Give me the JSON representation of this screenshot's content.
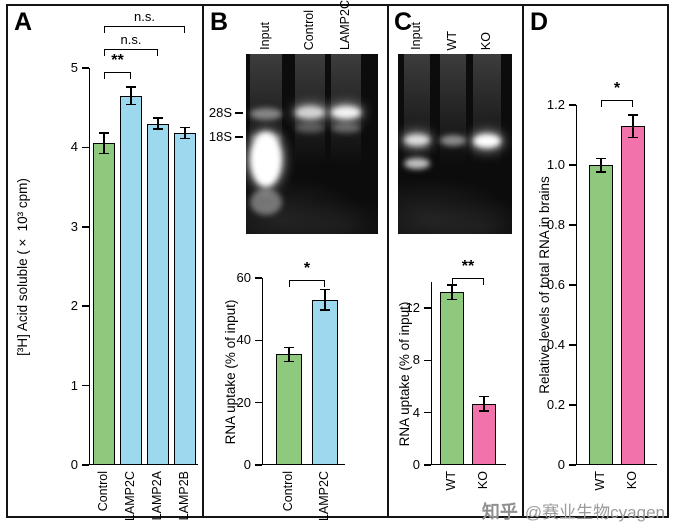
{
  "panel_labels": [
    "A",
    "B",
    "C",
    "D"
  ],
  "palette": {
    "green": "#8FC97E",
    "blue": "#9CD9EE",
    "pink": "#F272AB",
    "axis": "#000000"
  },
  "chart_data": [
    {
      "panel": "A",
      "type": "bar",
      "title": "",
      "xlabel": "",
      "ylabel": "[³H] Acid soluble (× 10³ cpm)",
      "ylim": [
        0,
        5
      ],
      "yticks": [
        "0",
        "1",
        "2",
        "3",
        "4",
        "5"
      ],
      "categories": [
        "Control",
        "LAMP2C",
        "LAMP2A",
        "LAMP2B"
      ],
      "values": [
        4.05,
        4.65,
        4.3,
        4.18
      ],
      "errors": [
        0.12,
        0.1,
        0.06,
        0.06
      ],
      "bar_colors": [
        "green",
        "blue",
        "blue",
        "blue"
      ],
      "significance": [
        {
          "from": 0,
          "to": 1,
          "label": "**"
        },
        {
          "from": 0,
          "to": 2,
          "label": "n.s."
        },
        {
          "from": 0,
          "to": 3,
          "label": "n.s."
        }
      ]
    },
    {
      "panel": "B",
      "type": "bar",
      "title": "",
      "xlabel": "",
      "ylabel": "RNA uptake (% of input)",
      "ylim": [
        0,
        60
      ],
      "yticks": [
        "0",
        "20",
        "40",
        "60"
      ],
      "categories": [
        "Control",
        "LAMP2C"
      ],
      "values": [
        35.5,
        53
      ],
      "errors": [
        2,
        3
      ],
      "bar_colors": [
        "green",
        "blue"
      ],
      "significance": [
        {
          "from": 0,
          "to": 1,
          "label": "*"
        }
      ]
    },
    {
      "panel": "C",
      "type": "bar",
      "title": "",
      "xlabel": "",
      "ylabel": "RNA uptake (% of input)",
      "ylim": [
        0,
        14
      ],
      "yticks": [
        "0",
        "4",
        "8",
        "12"
      ],
      "categories": [
        "WT",
        "KO"
      ],
      "values": [
        13.2,
        4.7
      ],
      "errors": [
        0.5,
        0.5
      ],
      "bar_colors": [
        "green",
        "pink"
      ],
      "significance": [
        {
          "from": 0,
          "to": 1,
          "label": "**"
        }
      ]
    },
    {
      "panel": "D",
      "type": "bar",
      "title": "",
      "xlabel": "",
      "ylabel": "Relative levels of total RNA in brains",
      "ylim": [
        0,
        1.2
      ],
      "yticks": [
        "0",
        "0.2",
        "0.4",
        "0.6",
        "0.8",
        "1.0",
        "1.2"
      ],
      "categories": [
        "WT",
        "KO"
      ],
      "values": [
        1.0,
        1.13
      ],
      "errors": [
        0.02,
        0.035
      ],
      "bar_colors": [
        "green",
        "pink"
      ],
      "significance": [
        {
          "from": 0,
          "to": 1,
          "label": "*"
        }
      ]
    }
  ],
  "gels": [
    {
      "panel": "B",
      "lane_labels": [
        "Input",
        "Control",
        "LAMP2C"
      ],
      "size_markers": [
        "28S",
        "18S"
      ]
    },
    {
      "panel": "C",
      "lane_labels": [
        "Input",
        "WT",
        "KO"
      ],
      "size_markers": []
    }
  ],
  "watermark": {
    "brand": "知乎",
    "handle": "@赛业生物cyagen"
  }
}
